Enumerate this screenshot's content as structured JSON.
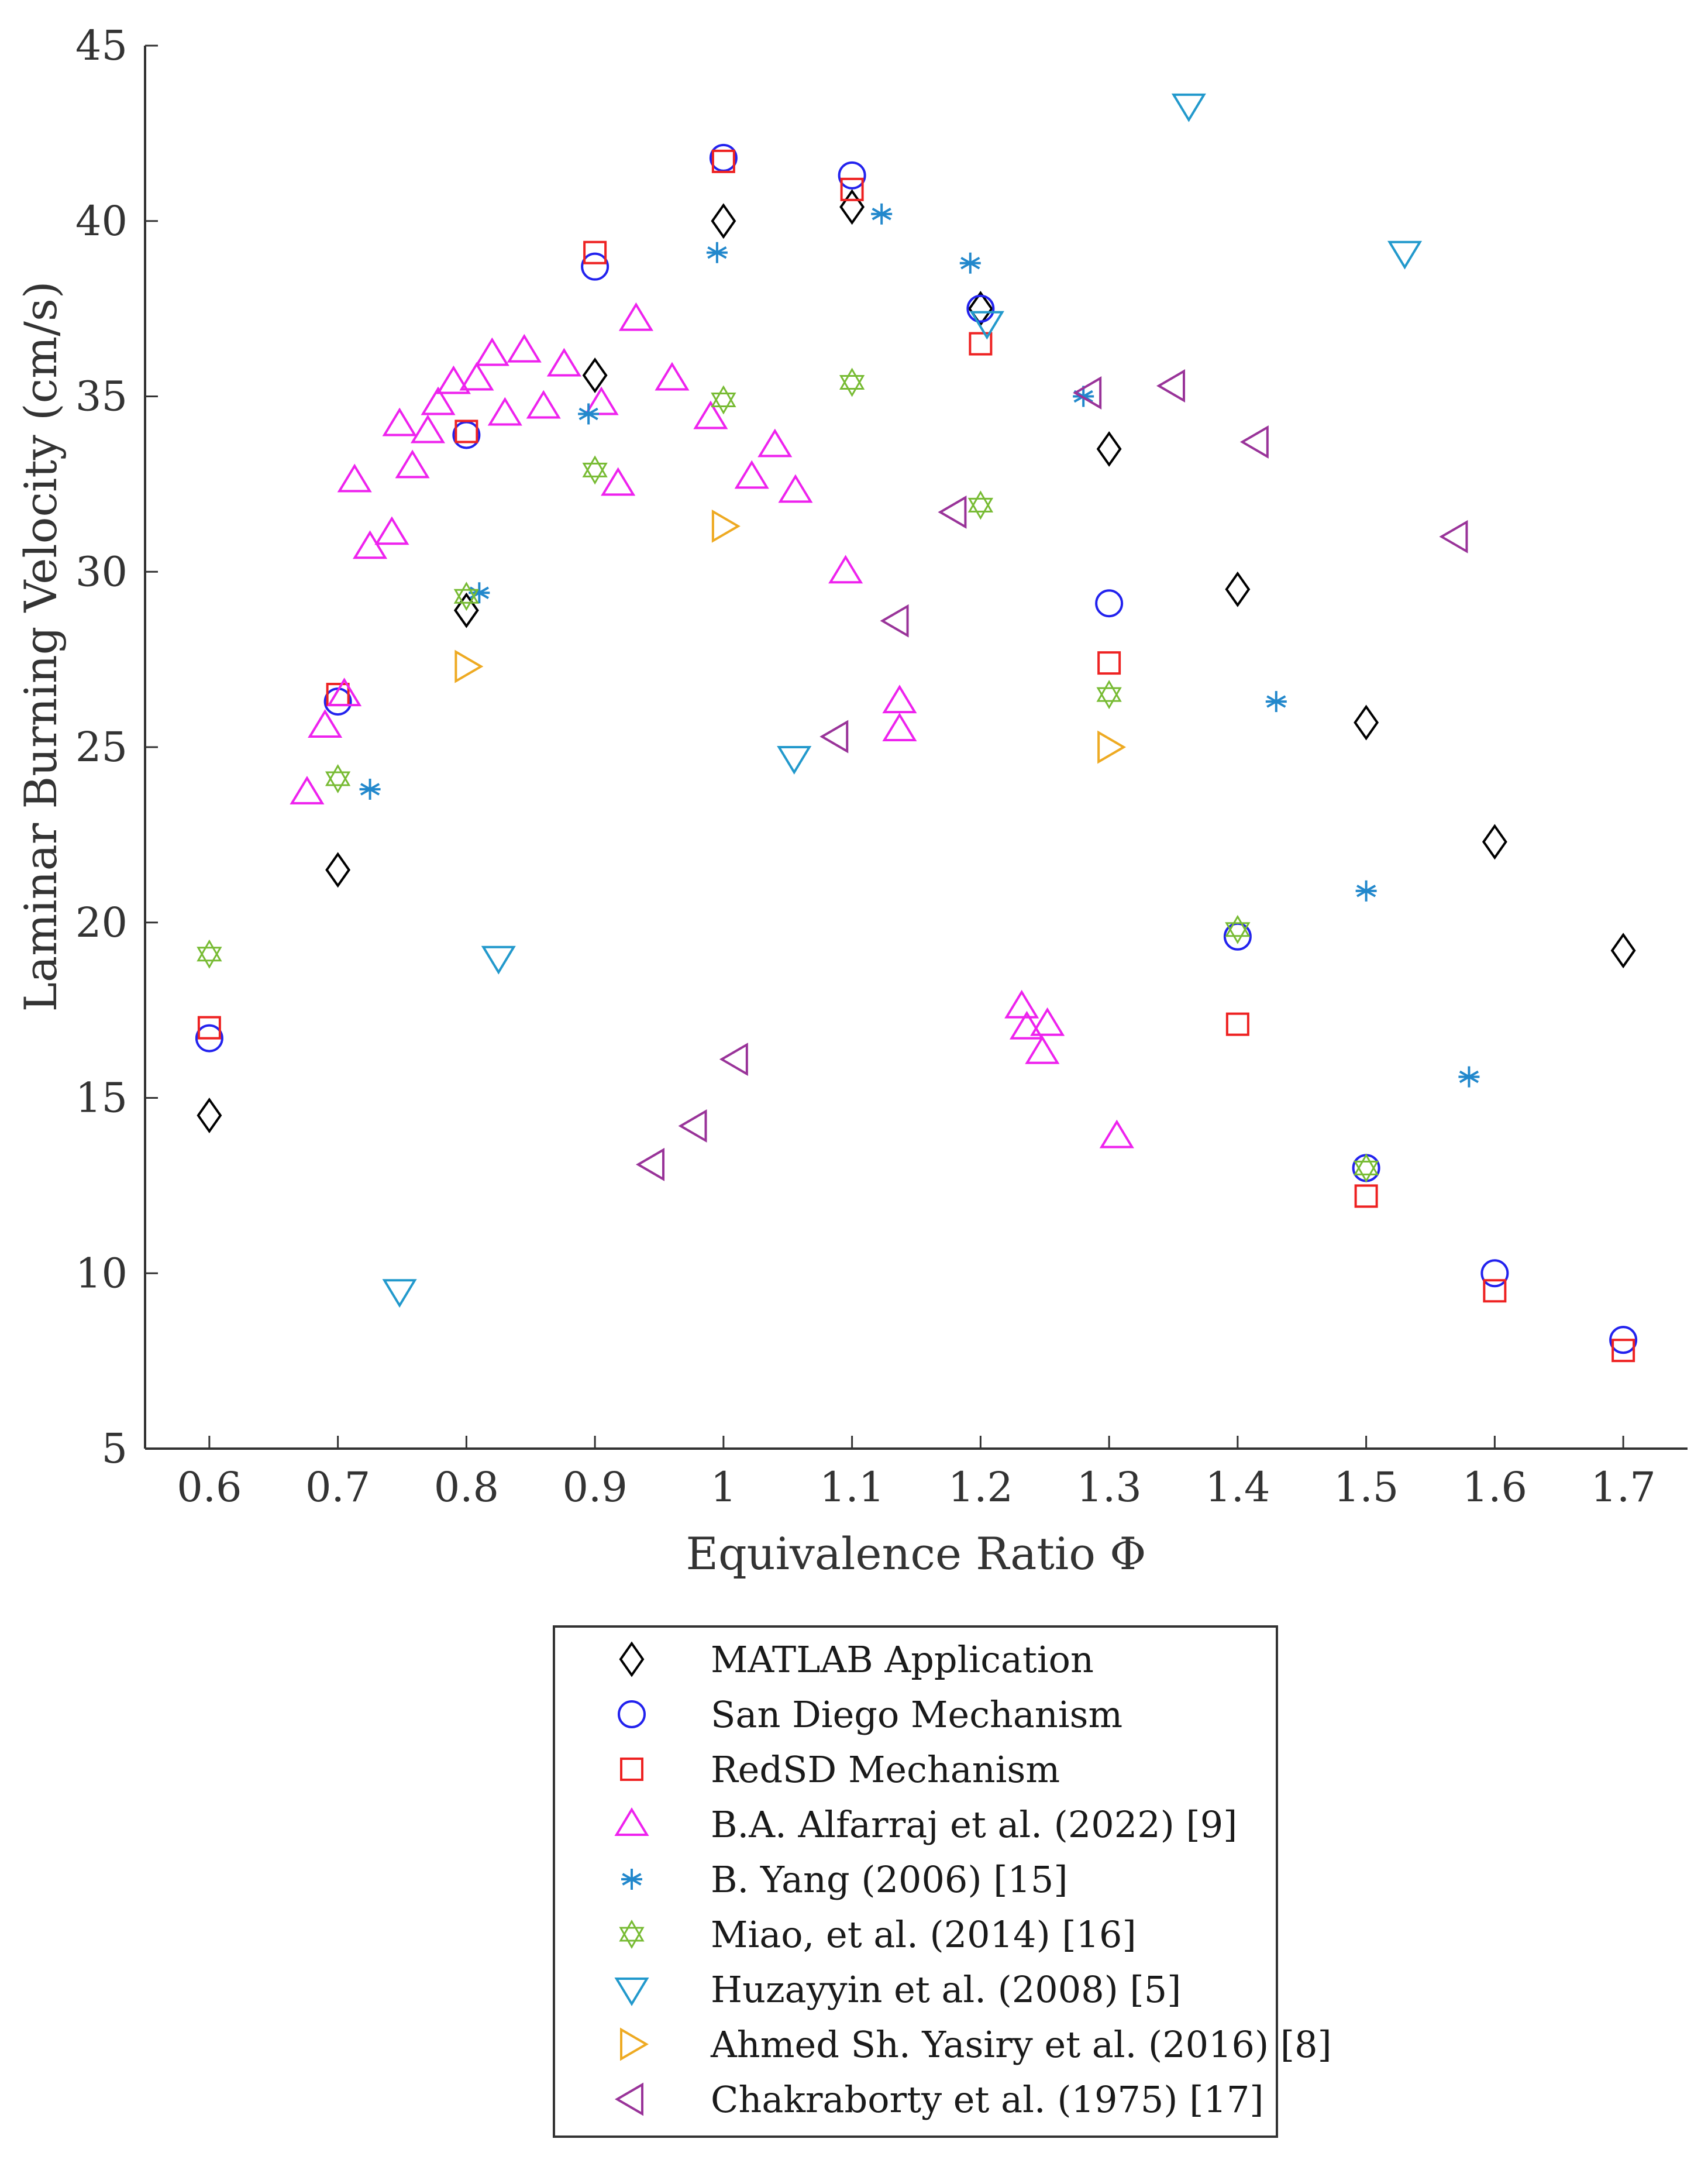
{
  "chart_data": {
    "type": "scatter",
    "xlabel": "Equivalence Ratio Φ",
    "ylabel": "Laminar Burning Velocity (cm/s)",
    "xlim": [
      0.55,
      1.75
    ],
    "ylim": [
      5,
      45
    ],
    "xticks": [
      0.6,
      0.7,
      0.8,
      0.9,
      1,
      1.1,
      1.2,
      1.3,
      1.4,
      1.5,
      1.6,
      1.7
    ],
    "xtick_labels": [
      "0.6",
      "0.7",
      "0.8",
      "0.9",
      "1",
      "1.1",
      "1.2",
      "1.3",
      "1.4",
      "1.5",
      "1.6",
      "1.7"
    ],
    "yticks": [
      5,
      10,
      15,
      20,
      25,
      30,
      35,
      40,
      45
    ],
    "ytick_labels": [
      "5",
      "10",
      "15",
      "20",
      "25",
      "30",
      "35",
      "40",
      "45"
    ],
    "grid": false,
    "legend_position": "below-plot",
    "series": [
      {
        "name": "MATLAB Application",
        "marker": "diamond",
        "color": "#000000",
        "points": [
          [
            0.6,
            14.5
          ],
          [
            0.7,
            21.5
          ],
          [
            0.8,
            28.9
          ],
          [
            0.9,
            35.6
          ],
          [
            1.0,
            40.0
          ],
          [
            1.1,
            40.4
          ],
          [
            1.2,
            37.5
          ],
          [
            1.3,
            33.5
          ],
          [
            1.4,
            29.5
          ],
          [
            1.5,
            25.7
          ],
          [
            1.6,
            22.3
          ],
          [
            1.7,
            19.2
          ]
        ]
      },
      {
        "name": "San Diego Mechanism",
        "marker": "circle",
        "color": "#2222ee",
        "points": [
          [
            0.6,
            16.7
          ],
          [
            0.7,
            26.3
          ],
          [
            0.8,
            33.9
          ],
          [
            0.9,
            38.7
          ],
          [
            1.0,
            41.8
          ],
          [
            1.1,
            41.3
          ],
          [
            1.2,
            37.5
          ],
          [
            1.3,
            29.1
          ],
          [
            1.4,
            19.6
          ],
          [
            1.5,
            13.0
          ],
          [
            1.6,
            10.0
          ],
          [
            1.7,
            8.1
          ]
        ]
      },
      {
        "name": "RedSD Mechanism",
        "marker": "square",
        "color": "#ee2222",
        "points": [
          [
            0.6,
            17.0
          ],
          [
            0.7,
            26.5
          ],
          [
            0.8,
            34.0
          ],
          [
            0.9,
            39.1
          ],
          [
            1.0,
            41.7
          ],
          [
            1.1,
            40.9
          ],
          [
            1.2,
            36.5
          ],
          [
            1.3,
            27.4
          ],
          [
            1.4,
            17.1
          ],
          [
            1.5,
            12.2
          ],
          [
            1.6,
            9.5
          ],
          [
            1.7,
            7.8
          ]
        ]
      },
      {
        "name": "B.A. Alfarraj et al. (2022) [9]",
        "marker": "triangle-up",
        "color": "#ee22ee",
        "points": [
          [
            0.676,
            23.7
          ],
          [
            0.69,
            25.6
          ],
          [
            0.705,
            26.5
          ],
          [
            0.713,
            32.6
          ],
          [
            0.725,
            30.7
          ],
          [
            0.742,
            31.1
          ],
          [
            0.748,
            34.2
          ],
          [
            0.758,
            33.0
          ],
          [
            0.77,
            34.0
          ],
          [
            0.778,
            34.8
          ],
          [
            0.79,
            35.4
          ],
          [
            0.808,
            35.5
          ],
          [
            0.82,
            36.2
          ],
          [
            0.83,
            34.5
          ],
          [
            0.845,
            36.3
          ],
          [
            0.86,
            34.7
          ],
          [
            0.876,
            35.9
          ],
          [
            0.905,
            34.8
          ],
          [
            0.918,
            32.5
          ],
          [
            0.932,
            37.2
          ],
          [
            0.96,
            35.5
          ],
          [
            0.99,
            34.4
          ],
          [
            1.022,
            32.7
          ],
          [
            1.04,
            33.6
          ],
          [
            1.056,
            32.3
          ],
          [
            1.095,
            30.0
          ],
          [
            1.137,
            26.3
          ],
          [
            1.137,
            25.5
          ],
          [
            1.232,
            17.6
          ],
          [
            1.236,
            17.0
          ],
          [
            1.252,
            17.1
          ],
          [
            1.248,
            16.3
          ],
          [
            1.306,
            13.9
          ]
        ]
      },
      {
        "name": "B. Yang (2006) [15]",
        "marker": "asterisk",
        "color": "#2288cc",
        "points": [
          [
            0.725,
            23.8
          ],
          [
            0.81,
            29.4
          ],
          [
            0.895,
            34.5
          ],
          [
            0.995,
            39.1
          ],
          [
            1.123,
            40.2
          ],
          [
            1.192,
            38.8
          ],
          [
            1.28,
            35.0
          ],
          [
            1.43,
            26.3
          ],
          [
            1.5,
            20.9
          ],
          [
            1.58,
            15.6
          ]
        ]
      },
      {
        "name": "Miao, et al. (2014) [16]",
        "marker": "hexagram",
        "color": "#77bb33",
        "points": [
          [
            0.6,
            19.1
          ],
          [
            0.7,
            24.1
          ],
          [
            0.8,
            29.3
          ],
          [
            0.9,
            32.9
          ],
          [
            1.0,
            34.9
          ],
          [
            1.1,
            35.4
          ],
          [
            1.2,
            31.9
          ],
          [
            1.3,
            26.5
          ],
          [
            1.4,
            19.8
          ],
          [
            1.5,
            13.0
          ]
        ]
      },
      {
        "name": "Huzayyin et al. (2008) [5]",
        "marker": "triangle-down",
        "color": "#2299cc",
        "points": [
          [
            0.748,
            9.5
          ],
          [
            0.825,
            19.0
          ],
          [
            1.055,
            24.7
          ],
          [
            1.205,
            37.1
          ],
          [
            1.362,
            43.3
          ],
          [
            1.53,
            39.1
          ]
        ]
      },
      {
        "name": "Ahmed Sh. Yasiry et al. (2016) [8]",
        "marker": "triangle-right",
        "color": "#eeaa22",
        "points": [
          [
            0.8,
            27.3
          ],
          [
            1.0,
            31.3
          ],
          [
            1.3,
            25.0
          ]
        ]
      },
      {
        "name": "Chakraborty et al. (1975) [17]",
        "marker": "triangle-left",
        "color": "#993399",
        "points": [
          [
            0.945,
            13.1
          ],
          [
            0.978,
            14.2
          ],
          [
            1.01,
            16.1
          ],
          [
            1.088,
            25.3
          ],
          [
            1.135,
            28.6
          ],
          [
            1.18,
            31.7
          ],
          [
            1.285,
            35.1
          ],
          [
            1.35,
            35.3
          ],
          [
            1.415,
            33.7
          ],
          [
            1.57,
            31.0
          ]
        ]
      }
    ]
  }
}
